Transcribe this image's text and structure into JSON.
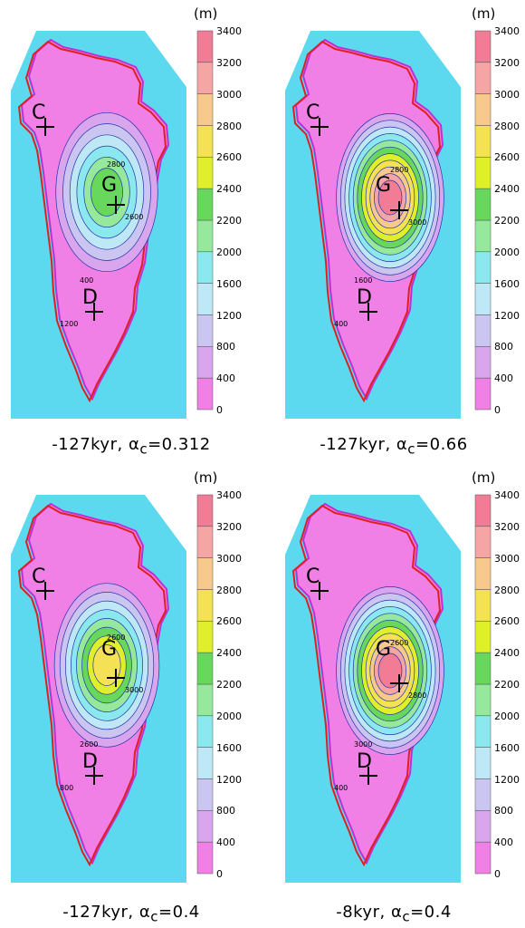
{
  "colorbar": {
    "unit": "(m)",
    "levels": [
      0,
      400,
      800,
      1200,
      1600,
      2000,
      2200,
      2400,
      2600,
      2800,
      3000,
      3200,
      3400
    ],
    "tick_labels": [
      "3400",
      "3200",
      "3000",
      "2800",
      "2600",
      "2400",
      "2200",
      "2000",
      "1600",
      "1200",
      "800",
      "400",
      "0"
    ],
    "colors": [
      "#f07fe6",
      "#d9a6ee",
      "#cbc6f1",
      "#bfe8f6",
      "#8ae8ee",
      "#96e89c",
      "#68d85c",
      "#dff02a",
      "#f4e254",
      "#f7c98d",
      "#f6a5a5",
      "#f27c95"
    ]
  },
  "colors": {
    "ocean": "#5cd9ef",
    "contour": "#2233aa",
    "present_margin": "#e02020",
    "ice_edge": "#c030d0"
  },
  "panels": [
    {
      "caption": {
        "time": "-127kyr,",
        "alpha": "α",
        "sub": "c",
        "value": "=0.312"
      },
      "sites": [
        {
          "label": "C"
        },
        {
          "label": "G"
        },
        {
          "label": "D"
        }
      ],
      "contour_labels": [
        "2800",
        "2600",
        "400",
        "1200"
      ]
    },
    {
      "caption": {
        "time": "-127kyr,",
        "alpha": "α",
        "sub": "c",
        "value": "=0.66"
      },
      "sites": [
        {
          "label": "C"
        },
        {
          "label": "G"
        },
        {
          "label": "D"
        }
      ],
      "contour_labels": [
        "2800",
        "3000",
        "1600",
        "400"
      ]
    },
    {
      "caption": {
        "time": "-127kyr,",
        "alpha": "α",
        "sub": "c",
        "value": "=0.4"
      },
      "sites": [
        {
          "label": "C"
        },
        {
          "label": "G"
        },
        {
          "label": "D"
        }
      ],
      "contour_labels": [
        "2600",
        "3000",
        "2600",
        "800"
      ]
    },
    {
      "caption": {
        "time": "-8kyr,",
        "alpha": "α",
        "sub": "c",
        "value": "=0.4"
      },
      "sites": [
        {
          "label": "C"
        },
        {
          "label": "G"
        },
        {
          "label": "D"
        }
      ],
      "contour_labels": [
        "2600",
        "2800",
        "3000",
        "400"
      ]
    }
  ]
}
